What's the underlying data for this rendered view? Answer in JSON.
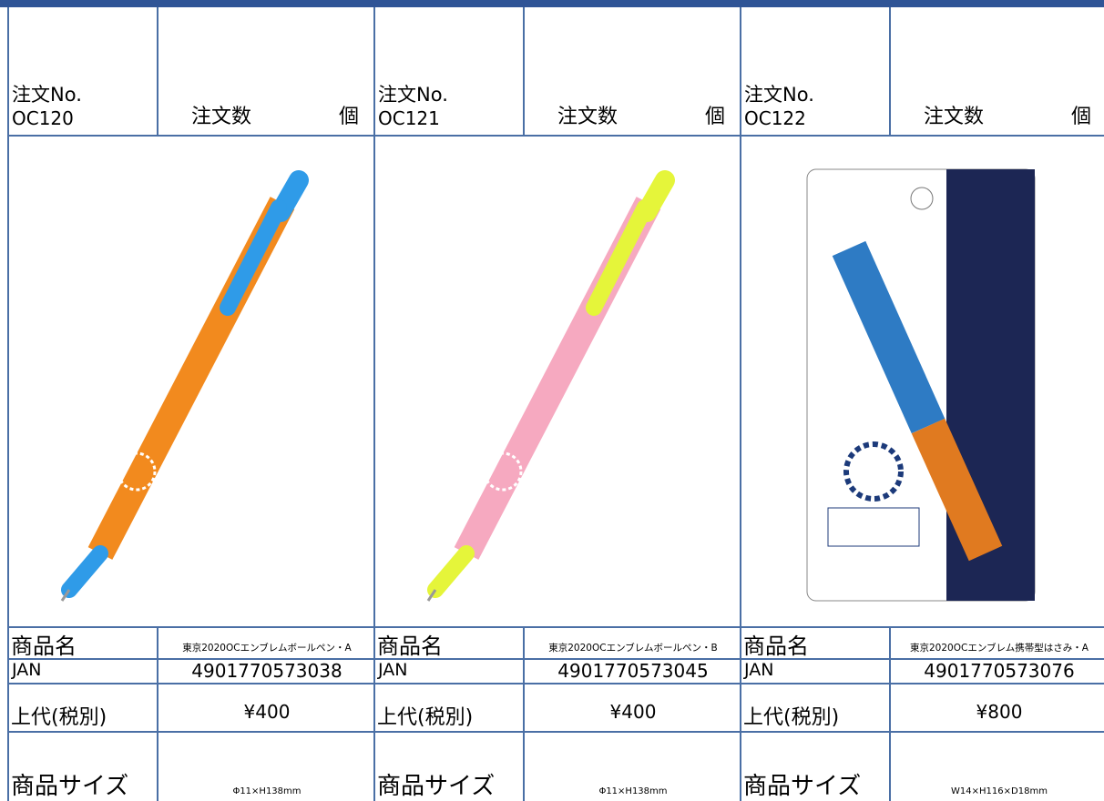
{
  "products": [
    {
      "order_no_label": "注文No.",
      "code": "OC120",
      "qty_label": "注文数",
      "unit": "個",
      "name_label": "商品名",
      "name": "東京2020OCエンブレムボールペン・A",
      "jan_label": "JAN",
      "jan": "4901770573038",
      "price_label": "上代(税別)",
      "price": "¥400",
      "size_label": "商品サイズ",
      "size": "Φ11×H138mm"
    },
    {
      "order_no_label": "注文No.",
      "code": "OC121",
      "qty_label": "注文数",
      "unit": "個",
      "name_label": "商品名",
      "name": "東京2020OCエンブレムボールペン・B",
      "jan_label": "JAN",
      "jan": "4901770573045",
      "price_label": "上代(税別)",
      "price": "¥400",
      "size_label": "商品サイズ",
      "size": "Φ11×H138mm"
    },
    {
      "order_no_label": "注文No.",
      "code": "OC122",
      "qty_label": "注文数",
      "unit": "個",
      "name_label": "商品名",
      "name": "東京2020OCエンブレム携帯型はさみ・A",
      "jan_label": "JAN",
      "jan": "4901770573076",
      "price_label": "上代(税別)",
      "price": "¥800",
      "size_label": "商品サイズ",
      "size": "W14×H116×D18mm"
    }
  ]
}
